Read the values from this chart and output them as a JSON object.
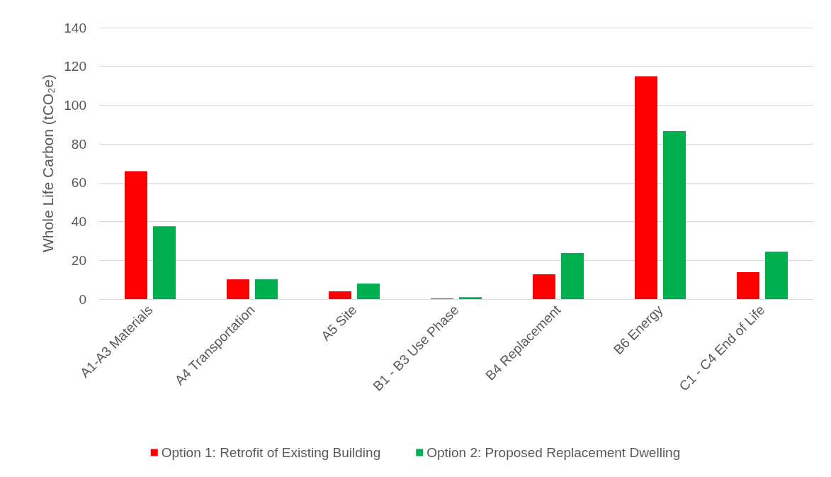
{
  "chart_data": {
    "type": "bar",
    "ylabel": "Whole Life Carbon (tCO₂e)",
    "categories": [
      "A1-A3 Materials",
      "A4 Transportation",
      "A5 Site",
      "B1 - B3 Use Phase",
      "B4 Replacement",
      "B6 Energy",
      "C1 - C4 End of Life"
    ],
    "series": [
      {
        "name": "Option 1: Retrofit of Existing Building",
        "color": "#ff0000",
        "values": [
          66,
          10.2,
          4,
          0.3,
          12.8,
          115,
          13.9
        ]
      },
      {
        "name": "Option 2: Proposed Replacement Dwelling",
        "color": "#00b050",
        "values": [
          37.6,
          10.2,
          8,
          1,
          23.8,
          86.6,
          24.5
        ]
      }
    ],
    "ylim": [
      0,
      140
    ],
    "yticks": [
      0,
      20,
      40,
      60,
      80,
      100,
      120,
      140
    ],
    "grid": "y",
    "legend": "bottom"
  }
}
